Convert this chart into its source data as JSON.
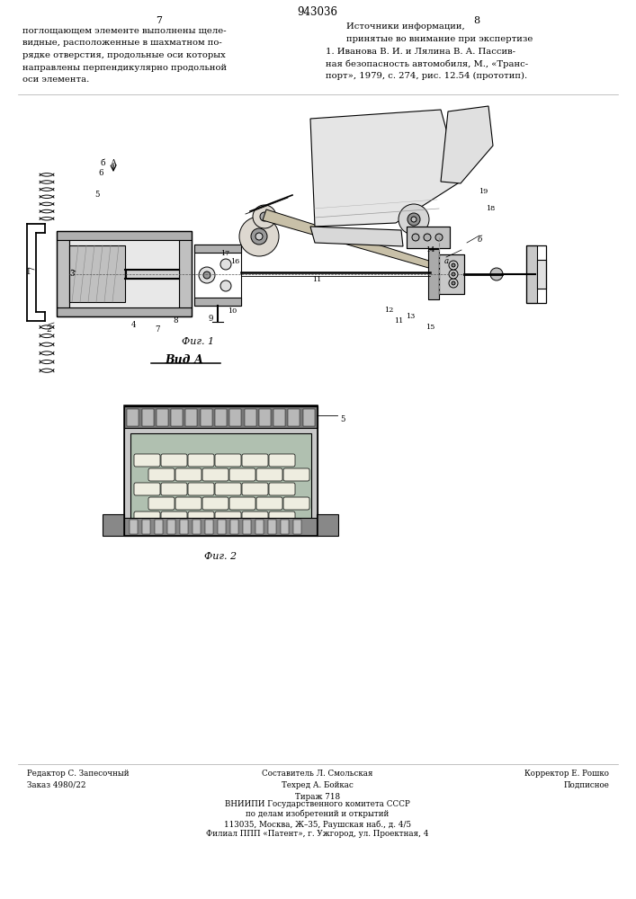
{
  "patent_number": "943036",
  "page_left": "7",
  "page_right": "8",
  "left_col_text": "поглощающем элементе выполнены щеле-\nвидные, расположенные в шахматном по-\nрядке отверстия, продольные оси которых\nнаправлены перпендикулярно продольной\nоси элемента.",
  "right_col_title1": "Источники информации,",
  "right_col_title2": "принятые во внимание при экспертизе",
  "right_col_body": "1. Иванова В. И. и Лялина В. А. Пассив-\nная безопасность автомобиля, М., «Транс-\nпорт», 1979, с. 274, рис. 12.54 (прототип).",
  "fig1_caption": "Фиг. 1",
  "fig2_caption": "Фиг. 2",
  "view_label": "Вид А",
  "footer_left_1": "Редактор С. Запесочный",
  "footer_left_2": "Заказ 4980/22",
  "footer_mid_1": "Составитель Л. Смольская",
  "footer_mid_2": "Техред А. Бойкас",
  "footer_mid_3": "Тираж 718",
  "footer_right_1": "Корректор Е. Рошко",
  "footer_right_2": "Подписное",
  "footer_bottom": "ВНИИПИ Государственного комитета СССР\nпо делам изобретений и открытий\n113035, Москва, Ж–35, Раушская наб., д. 4/5\nФилиал ППП «Патент», г. Ужгород, ул. Проектная, 4",
  "bg_color": "#ffffff",
  "lc": "#000000"
}
